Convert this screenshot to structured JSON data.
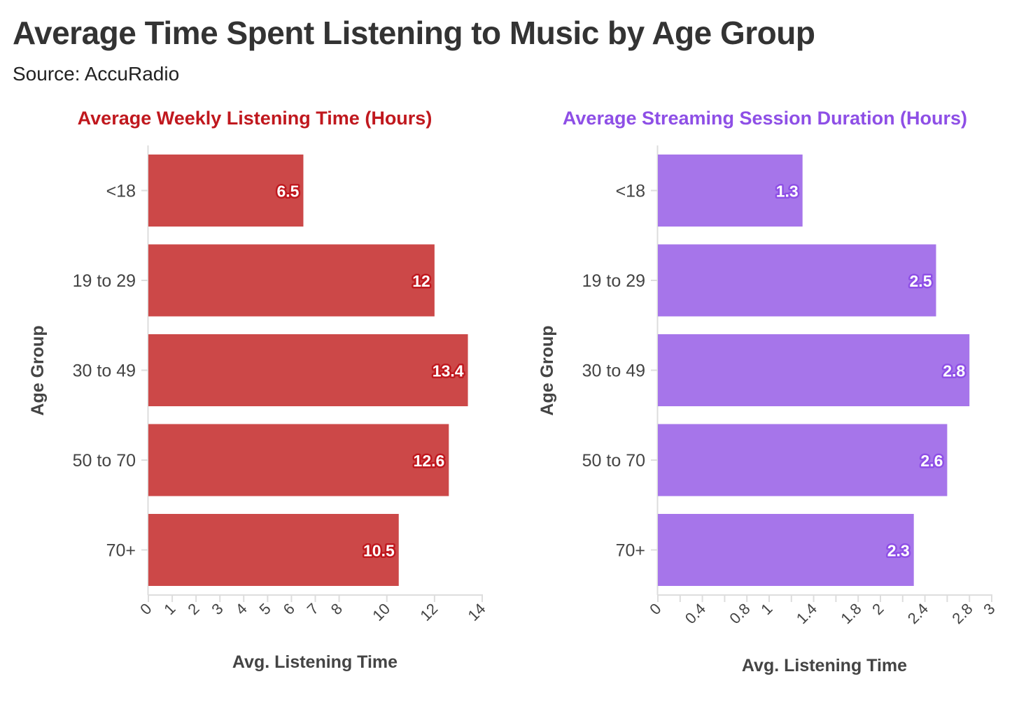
{
  "title": "Average Time Spent Listening to Music by Age Group",
  "subtitle": "Source: AccuRadio",
  "chart_data": [
    {
      "type": "bar",
      "orientation": "horizontal",
      "title": "Average Weekly Listening Time (Hours)",
      "title_color": "#C0181E",
      "bar_color": "#CC4848",
      "label_stroke": "#C0181E",
      "xlabel": "Avg. Listening Time",
      "ylabel": "Age Group",
      "categories": [
        "<18",
        "19 to 29",
        "30 to 49",
        "50 to 70",
        "70+"
      ],
      "values": [
        6.5,
        12,
        13.4,
        12.6,
        10.5
      ],
      "value_labels": [
        "6.5",
        "12",
        "13.4",
        "12.6",
        "10.5"
      ],
      "xlim": [
        0,
        14
      ],
      "xticks": [
        0,
        1,
        2,
        3,
        4,
        5,
        6,
        7,
        8,
        10,
        12,
        14
      ],
      "xtick_labels": [
        "0",
        "1",
        "2",
        "3",
        "4",
        "5",
        "6",
        "7",
        "8",
        "10",
        "12",
        "14"
      ],
      "grid": false,
      "legend": false
    },
    {
      "type": "bar",
      "orientation": "horizontal",
      "title": "Average Streaming Session Duration (Hours)",
      "title_color": "#8E4FE6",
      "bar_color": "#A675EA",
      "label_stroke": "#8E4FE6",
      "xlabel": "Avg. Listening Time",
      "ylabel": "Age Group",
      "categories": [
        "<18",
        "19 to 29",
        "30 to 49",
        "50 to 70",
        "70+"
      ],
      "values": [
        1.3,
        2.5,
        2.8,
        2.6,
        2.3
      ],
      "value_labels": [
        "1.3",
        "2.5",
        "2.8",
        "2.6",
        "2.3"
      ],
      "xlim": [
        0,
        3
      ],
      "xticks": [
        0,
        0.2,
        0.4,
        0.6,
        0.8,
        1,
        1.2,
        1.4,
        1.6,
        1.8,
        2,
        2.2,
        2.4,
        2.6,
        2.8,
        3
      ],
      "xtick_labels": [
        "0",
        "",
        "0.4",
        "",
        "0.8",
        "1",
        "",
        "1.4",
        "",
        "1.8",
        "2",
        "",
        "2.4",
        "",
        "2.8",
        "3"
      ],
      "grid": false,
      "legend": false
    }
  ]
}
